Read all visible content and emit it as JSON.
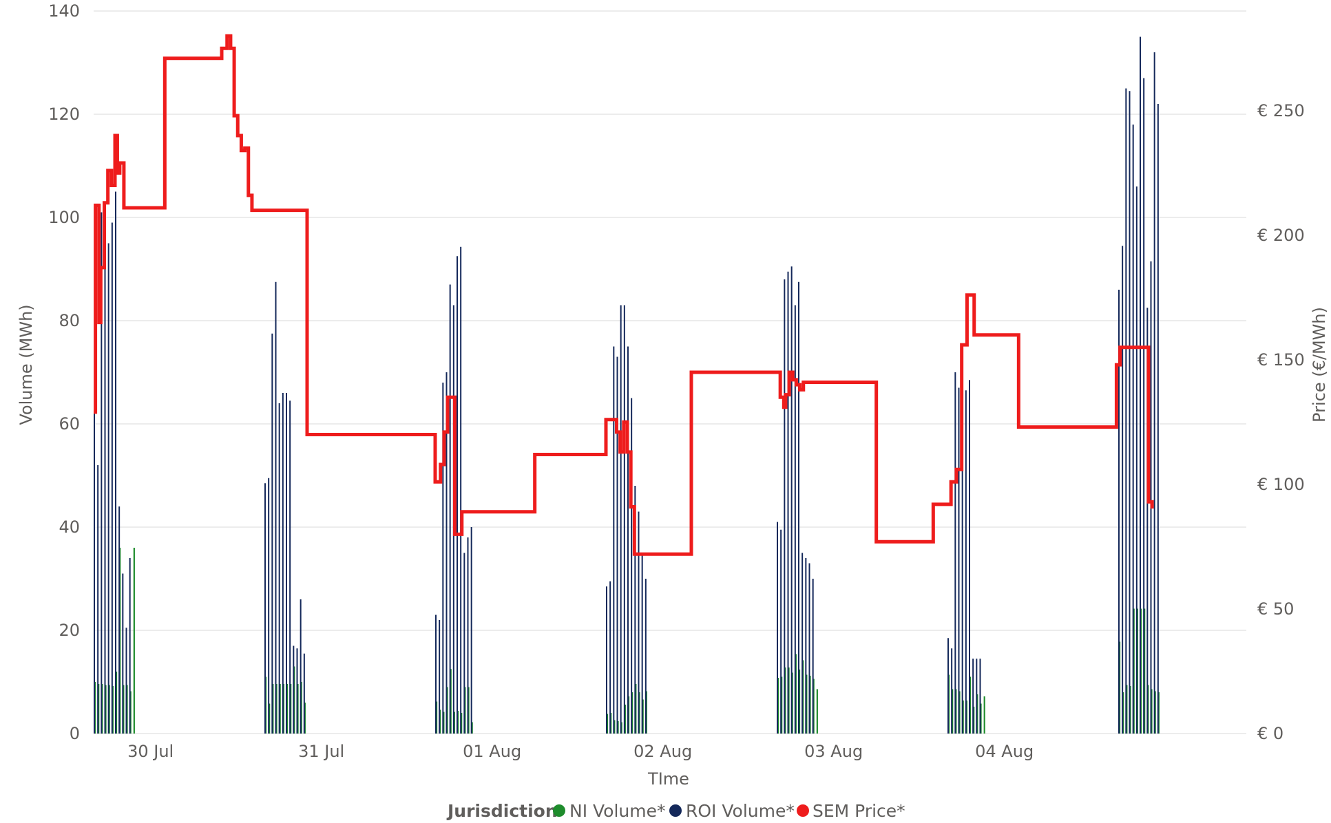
{
  "chart_data": {
    "type": "bar+line",
    "x": {
      "label": "TIme",
      "tick_labels": [
        "30 Jul",
        "31 Jul",
        "01 Aug",
        "02 Aug",
        "03 Aug",
        "04 Aug"
      ],
      "tick_dates": [
        "2025-07-30",
        "2025-07-31",
        "2025-08-01",
        "2025-08-02",
        "2025-08-03",
        "2025-08-04"
      ],
      "range": [
        "2025-07-29T16:00",
        "2025-08-05T10:00"
      ]
    },
    "y_left": {
      "label": "Volume (MWh)",
      "range": [
        0,
        140
      ],
      "ticks": [
        0,
        20,
        40,
        60,
        80,
        100,
        120,
        140
      ]
    },
    "y_right": {
      "label": "Price (€/MWh)",
      "range": [
        0,
        290
      ],
      "ticks": [
        0,
        50,
        100,
        150,
        200,
        250
      ],
      "tick_prefix": "€ "
    },
    "grid": true,
    "legend": {
      "title": "Jurisdiction",
      "position": "bottom-center"
    },
    "series": [
      {
        "name": "NI Volume*",
        "type": "bar",
        "axis": "left",
        "color": "#1E8C2C",
        "groups": [
          {
            "start": "2025-07-29T16:00",
            "values": [
              10,
              9.6,
              9.6,
              9.4,
              9.4,
              9.2,
              12,
              36,
              9.4,
              9.4,
              8.2,
              36
            ]
          },
          {
            "start": "2025-07-30T16:00",
            "values": [
              11,
              5.8,
              9.6,
              9.6,
              9.6,
              9.6,
              9.6,
              9.6,
              13,
              9.6,
              10,
              6
            ]
          },
          {
            "start": "2025-07-31T16:00",
            "values": [
              6.2,
              4.6,
              4.2,
              9,
              12.5,
              4.2,
              4.4,
              4,
              9,
              9,
              2.2,
              0
            ]
          },
          {
            "start": "2025-08-01T16:00",
            "values": [
              3.8,
              4,
              2.6,
              2.4,
              2.2,
              5.6,
              7.2,
              8,
              9.6,
              8,
              6.6,
              8.2
            ]
          },
          {
            "start": "2025-08-02T16:00",
            "values": [
              10.8,
              11,
              12.8,
              12.8,
              11.8,
              15.4,
              12.4,
              14.2,
              11.4,
              11.2,
              10.6,
              8.6
            ]
          },
          {
            "start": "2025-08-03T16:00",
            "values": [
              11.4,
              8.6,
              8.6,
              8.2,
              6.4,
              6.4,
              11,
              5.2,
              7.6,
              5.8,
              7.2,
              0
            ]
          },
          {
            "start": "2025-08-04T16:00",
            "values": [
              17.8,
              8,
              9.4,
              9.2,
              24.2,
              24.2,
              24.2,
              24.2,
              9.4,
              8.6,
              8.2,
              8
            ]
          }
        ]
      },
      {
        "name": "ROI Volume*",
        "type": "bar",
        "axis": "left",
        "color": "#14285A",
        "groups": [
          {
            "start": "2025-07-29T16:00",
            "values": [
              62,
              52,
              101,
              90,
              95,
              99,
              105,
              44,
              31,
              20.5,
              34,
              0
            ]
          },
          {
            "start": "2025-07-30T16:00",
            "values": [
              48.5,
              49.5,
              77.5,
              87.5,
              64,
              66,
              66,
              64.5,
              17,
              16.5,
              26,
              15.5
            ]
          },
          {
            "start": "2025-07-31T16:00",
            "values": [
              23,
              22,
              68,
              70,
              87,
              83,
              92.5,
              94.3,
              35,
              38,
              40,
              0
            ]
          },
          {
            "start": "2025-08-01T16:00",
            "values": [
              28.5,
              29.5,
              75,
              73,
              83,
              83,
              75,
              65,
              48,
              43,
              35,
              30
            ]
          },
          {
            "start": "2025-08-02T16:00",
            "values": [
              41,
              39.5,
              88,
              89.5,
              90.5,
              83,
              87.5,
              35,
              34,
              33,
              30,
              0
            ]
          },
          {
            "start": "2025-08-03T16:00",
            "values": [
              18.5,
              16.5,
              70,
              67,
              71.5,
              66.5,
              68.5,
              14.5,
              14.5,
              14.5,
              0,
              0
            ]
          },
          {
            "start": "2025-08-04T16:00",
            "values": [
              86,
              94.5,
              125,
              124.5,
              118,
              106,
              135,
              127,
              82.5,
              91.5,
              132,
              122
            ]
          }
        ]
      },
      {
        "name": "SEM Price*",
        "type": "step-line",
        "axis": "right",
        "color": "#EE1C1C",
        "points": [
          [
            "2025-07-29T16:00",
            129
          ],
          [
            "2025-07-29T16:15",
            212
          ],
          [
            "2025-07-29T16:45",
            165
          ],
          [
            "2025-07-29T17:00",
            187
          ],
          [
            "2025-07-29T17:30",
            213
          ],
          [
            "2025-07-29T18:00",
            226
          ],
          [
            "2025-07-29T18:30",
            220
          ],
          [
            "2025-07-29T19:00",
            240
          ],
          [
            "2025-07-29T19:20",
            225
          ],
          [
            "2025-07-29T19:40",
            229
          ],
          [
            "2025-07-29T20:15",
            211
          ],
          [
            "2025-07-30T02:00",
            271
          ],
          [
            "2025-07-30T10:00",
            275
          ],
          [
            "2025-07-30T10:45",
            280
          ],
          [
            "2025-07-30T11:15",
            275
          ],
          [
            "2025-07-30T11:45",
            248
          ],
          [
            "2025-07-30T12:15",
            240
          ],
          [
            "2025-07-30T12:45",
            234
          ],
          [
            "2025-07-30T13:15",
            235
          ],
          [
            "2025-07-30T13:45",
            216
          ],
          [
            "2025-07-30T14:15",
            210
          ],
          [
            "2025-07-30T22:00",
            120
          ],
          [
            "2025-07-31T16:00",
            101
          ],
          [
            "2025-07-31T16:45",
            108
          ],
          [
            "2025-07-31T17:15",
            121
          ],
          [
            "2025-07-31T17:45",
            135
          ],
          [
            "2025-07-31T18:45",
            80
          ],
          [
            "2025-07-31T19:45",
            89
          ],
          [
            "2025-08-01T06:00",
            112
          ],
          [
            "2025-08-01T16:00",
            126
          ],
          [
            "2025-08-01T17:30",
            121
          ],
          [
            "2025-08-01T18:00",
            113
          ],
          [
            "2025-08-01T18:30",
            125
          ],
          [
            "2025-08-01T19:00",
            113
          ],
          [
            "2025-08-01T19:30",
            91
          ],
          [
            "2025-08-01T20:00",
            72
          ],
          [
            "2025-08-02T04:00",
            145
          ],
          [
            "2025-08-02T16:30",
            135
          ],
          [
            "2025-08-02T17:00",
            131
          ],
          [
            "2025-08-02T17:15",
            136
          ],
          [
            "2025-08-02T17:45",
            145
          ],
          [
            "2025-08-02T18:15",
            142
          ],
          [
            "2025-08-02T18:45",
            140
          ],
          [
            "2025-08-02T19:15",
            138
          ],
          [
            "2025-08-02T19:45",
            141
          ],
          [
            "2025-08-03T06:00",
            77
          ],
          [
            "2025-08-03T14:00",
            92
          ],
          [
            "2025-08-03T16:30",
            101
          ],
          [
            "2025-08-03T17:15",
            106
          ],
          [
            "2025-08-03T18:00",
            156
          ],
          [
            "2025-08-03T18:45",
            176
          ],
          [
            "2025-08-03T19:45",
            160
          ],
          [
            "2025-08-04T02:00",
            123
          ],
          [
            "2025-08-04T15:45",
            148
          ],
          [
            "2025-08-04T16:15",
            155
          ],
          [
            "2025-08-04T17:45",
            155
          ],
          [
            "2025-08-04T20:15",
            93
          ],
          [
            "2025-08-04T20:45",
            91
          ],
          [
            "2025-08-04T21:00",
            91
          ]
        ]
      }
    ]
  }
}
